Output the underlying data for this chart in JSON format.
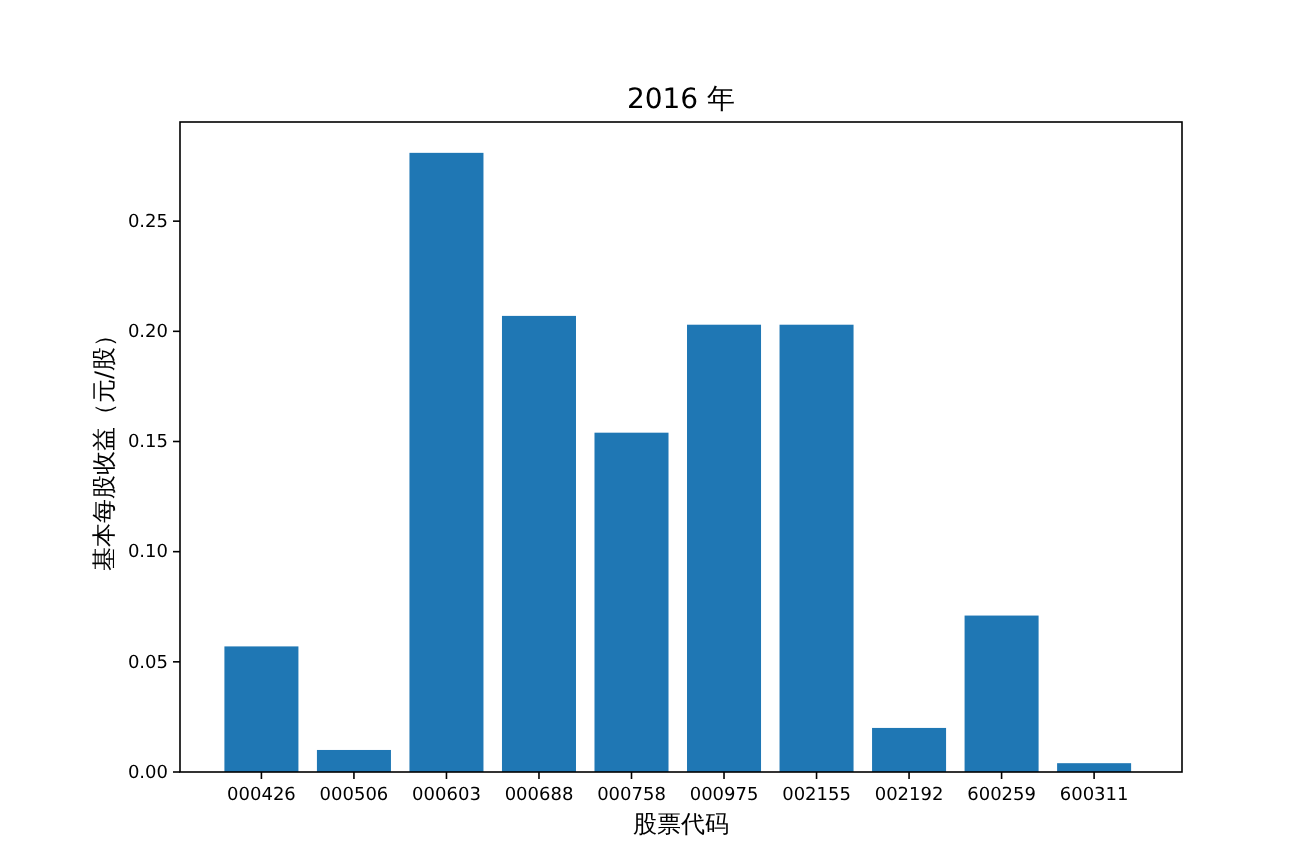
{
  "chart_data": {
    "type": "bar",
    "title": "2016 年",
    "xlabel": "股票代码",
    "ylabel": "基本每股收益（元/股）",
    "categories": [
      "000426",
      "000506",
      "000603",
      "000688",
      "000758",
      "000975",
      "002155",
      "002192",
      "600259",
      "600311"
    ],
    "values": [
      0.057,
      0.01,
      0.281,
      0.207,
      0.154,
      0.203,
      0.203,
      0.02,
      0.071,
      0.004
    ],
    "color": "#1f77b4",
    "ylim": [
      0,
      0.295
    ],
    "yticks": [
      {
        "value": 0,
        "label": "0.00"
      },
      {
        "value": 0.05,
        "label": "0.05"
      },
      {
        "value": 0.1,
        "label": "0.10"
      },
      {
        "value": 0.15,
        "label": "0.15"
      },
      {
        "value": 0.2,
        "label": "0.20"
      },
      {
        "value": 0.25,
        "label": "0.25"
      }
    ],
    "grid": false
  }
}
